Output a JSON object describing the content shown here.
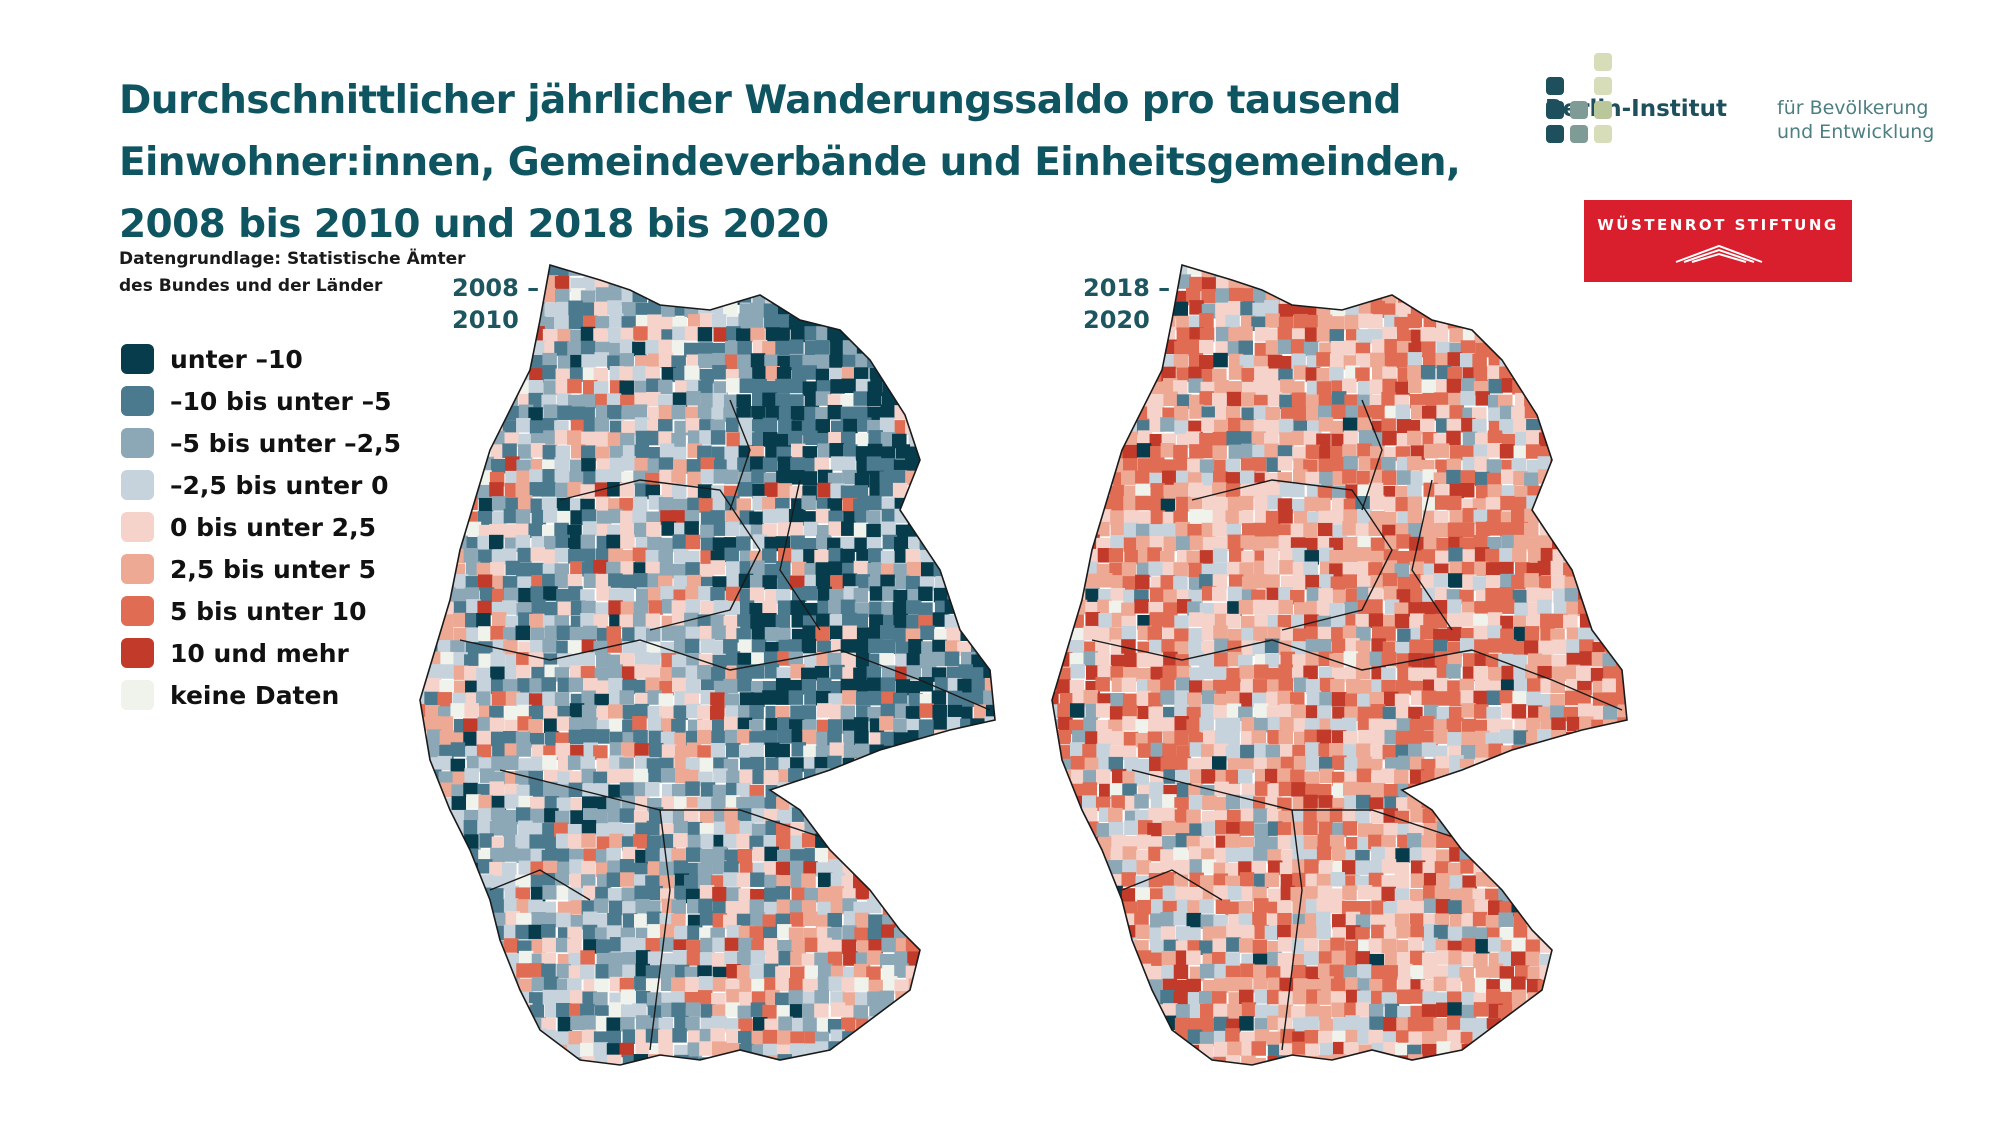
{
  "title": {
    "line1": "Durchschnittlicher jährlicher Wanderungssaldo pro tausend",
    "line2": "Einwohner:innen, Gemeindeverbände und Einheitsgemeinden,",
    "line3": "2008 bis 2010 und 2018 bis 2020"
  },
  "source": {
    "line1": "Datengrundlage: Statistische Ämter",
    "line2": "des Bundes und der Länder"
  },
  "legend": [
    {
      "label": "unter –10",
      "color": "#073c4c"
    },
    {
      "label": "–10 bis unter –5",
      "color": "#4b7a8e"
    },
    {
      "label": "–5 bis unter –2,5",
      "color": "#8ca7b5"
    },
    {
      "label": "–2,5 bis unter 0",
      "color": "#c6d3dc"
    },
    {
      "label": "0 bis unter 2,5",
      "color": "#f6d3ca"
    },
    {
      "label": "2,5 bis unter 5",
      "color": "#eea995"
    },
    {
      "label": "5 bis unter 10",
      "color": "#e06d53"
    },
    {
      "label": "10 und mehr",
      "color": "#c23a29"
    },
    {
      "label": "keine Daten",
      "color": "#f0f2ec"
    }
  ],
  "maps": [
    {
      "period_line1": "2008 –",
      "period_line2": "2010",
      "dominant": "blue"
    },
    {
      "period_line1": "2018 –",
      "period_line2": "2020",
      "dominant": "red"
    }
  ],
  "logos": {
    "berlin_institut_name": "Berlin-Institut",
    "berlin_institut_sub1": "für Bevölkerung",
    "berlin_institut_sub2": "und Entwicklung",
    "wuestenrot": "WÜSTENROT STIFTUNG"
  }
}
